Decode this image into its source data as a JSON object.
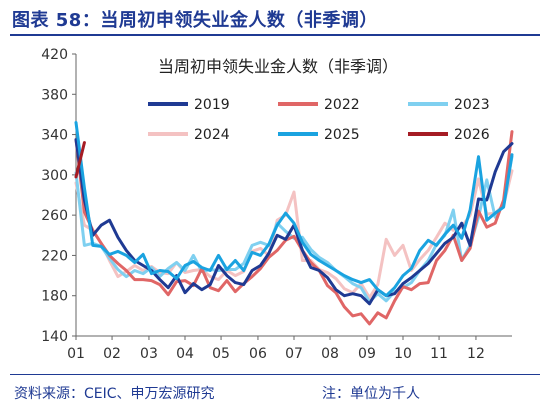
{
  "figure": {
    "title": "图表 58：当周初申领失业金人数（非季调）",
    "source": "资料来源：CEIC、申万宏源研究",
    "note": "注：单位为千人"
  },
  "chart_data": {
    "type": "line",
    "title": "当周初申领失业金人数（非季调）",
    "xlabel": "",
    "ylabel": "",
    "ylim": [
      140,
      420
    ],
    "yticks": [
      140,
      180,
      220,
      260,
      300,
      340,
      380,
      420
    ],
    "xlim": [
      1,
      53
    ],
    "x_tick_labels": [
      "01",
      "02",
      "03",
      "04",
      "05",
      "06",
      "07",
      "08",
      "09",
      "10",
      "11",
      "12"
    ],
    "x_tick_weeks": [
      1,
      5.3,
      9.7,
      14,
      18.3,
      22.7,
      27,
      31.3,
      35.7,
      40,
      44.3,
      48.7
    ],
    "grid": false,
    "legend": "top-right",
    "series": [
      {
        "name": "2019",
        "color": "#1f3a93",
        "width": 3,
        "points": [
          [
            1,
            335
          ],
          [
            2,
            275
          ],
          [
            3,
            240
          ],
          [
            4,
            250
          ],
          [
            5,
            255
          ],
          [
            6,
            238
          ],
          [
            7,
            225
          ],
          [
            8,
            215
          ],
          [
            9,
            210
          ],
          [
            10,
            205
          ],
          [
            11,
            196
          ],
          [
            12,
            188
          ],
          [
            13,
            200
          ],
          [
            14,
            183
          ],
          [
            15,
            192
          ],
          [
            16,
            186
          ],
          [
            17,
            191
          ],
          [
            18,
            210
          ],
          [
            19,
            200
          ],
          [
            20,
            193
          ],
          [
            21,
            191
          ],
          [
            22,
            205
          ],
          [
            23,
            210
          ],
          [
            24,
            222
          ],
          [
            25,
            240
          ],
          [
            26,
            236
          ],
          [
            27,
            250
          ],
          [
            28,
            225
          ],
          [
            29,
            208
          ],
          [
            30,
            205
          ],
          [
            31,
            198
          ],
          [
            32,
            186
          ],
          [
            33,
            180
          ],
          [
            34,
            182
          ],
          [
            35,
            180
          ],
          [
            36,
            172
          ],
          [
            37,
            186
          ],
          [
            38,
            180
          ],
          [
            39,
            182
          ],
          [
            40,
            192
          ],
          [
            41,
            198
          ],
          [
            42,
            205
          ],
          [
            43,
            212
          ],
          [
            44,
            222
          ],
          [
            45,
            232
          ],
          [
            46,
            238
          ],
          [
            47,
            252
          ],
          [
            48,
            230
          ],
          [
            49,
            276
          ],
          [
            50,
            275
          ],
          [
            51,
            303
          ],
          [
            52,
            323
          ],
          [
            53,
            331
          ]
        ]
      },
      {
        "name": "2022",
        "color": "#e06666",
        "width": 3,
        "points": [
          [
            1,
            335
          ],
          [
            2,
            263
          ],
          [
            3,
            245
          ],
          [
            4,
            232
          ],
          [
            5,
            220
          ],
          [
            6,
            212
          ],
          [
            7,
            205
          ],
          [
            8,
            196
          ],
          [
            9,
            196
          ],
          [
            10,
            195
          ],
          [
            11,
            191
          ],
          [
            12,
            181
          ],
          [
            13,
            194
          ],
          [
            14,
            195
          ],
          [
            15,
            190
          ],
          [
            16,
            207
          ],
          [
            17,
            188
          ],
          [
            18,
            185
          ],
          [
            19,
            195
          ],
          [
            20,
            184
          ],
          [
            21,
            192
          ],
          [
            22,
            199
          ],
          [
            23,
            207
          ],
          [
            24,
            218
          ],
          [
            25,
            225
          ],
          [
            26,
            235
          ],
          [
            27,
            239
          ],
          [
            28,
            225
          ],
          [
            29,
            213
          ],
          [
            30,
            205
          ],
          [
            31,
            190
          ],
          [
            32,
            183
          ],
          [
            33,
            169
          ],
          [
            34,
            160
          ],
          [
            35,
            162
          ],
          [
            36,
            152
          ],
          [
            37,
            163
          ],
          [
            38,
            158
          ],
          [
            39,
            175
          ],
          [
            40,
            189
          ],
          [
            41,
            186
          ],
          [
            42,
            192
          ],
          [
            43,
            193
          ],
          [
            44,
            215
          ],
          [
            45,
            225
          ],
          [
            46,
            240
          ],
          [
            47,
            215
          ],
          [
            48,
            227
          ],
          [
            49,
            264
          ],
          [
            50,
            248
          ],
          [
            51,
            252
          ],
          [
            52,
            275
          ],
          [
            53,
            343
          ]
        ]
      },
      {
        "name": "2023",
        "color": "#7fd0f0",
        "width": 3,
        "points": [
          [
            1,
            302
          ],
          [
            2,
            230
          ],
          [
            3,
            232
          ],
          [
            4,
            229
          ],
          [
            5,
            217
          ],
          [
            6,
            206
          ],
          [
            7,
            199
          ],
          [
            8,
            205
          ],
          [
            9,
            202
          ],
          [
            10,
            208
          ],
          [
            11,
            199
          ],
          [
            12,
            207
          ],
          [
            13,
            213
          ],
          [
            14,
            205
          ],
          [
            15,
            220
          ],
          [
            16,
            204
          ],
          [
            17,
            206
          ],
          [
            18,
            205
          ],
          [
            19,
            206
          ],
          [
            20,
            206
          ],
          [
            21,
            212
          ],
          [
            22,
            230
          ],
          [
            23,
            233
          ],
          [
            24,
            230
          ],
          [
            25,
            252
          ],
          [
            26,
            244
          ],
          [
            27,
            237
          ],
          [
            28,
            238
          ],
          [
            29,
            226
          ],
          [
            30,
            218
          ],
          [
            31,
            213
          ],
          [
            32,
            205
          ],
          [
            33,
            199
          ],
          [
            34,
            192
          ],
          [
            35,
            188
          ],
          [
            36,
            174
          ],
          [
            37,
            182
          ],
          [
            38,
            175
          ],
          [
            39,
            184
          ],
          [
            40,
            188
          ],
          [
            41,
            193
          ],
          [
            42,
            205
          ],
          [
            43,
            215
          ],
          [
            44,
            231
          ],
          [
            45,
            240
          ],
          [
            46,
            265
          ],
          [
            47,
            215
          ],
          [
            48,
            230
          ],
          [
            49,
            258
          ],
          [
            50,
            295
          ],
          [
            51,
            258
          ],
          [
            52,
            272
          ],
          [
            53,
            318
          ]
        ]
      },
      {
        "name": "2024",
        "color": "#f4c2c2",
        "width": 3,
        "points": [
          [
            1,
            292
          ],
          [
            2,
            250
          ],
          [
            3,
            245
          ],
          [
            4,
            232
          ],
          [
            5,
            215
          ],
          [
            6,
            199
          ],
          [
            7,
            204
          ],
          [
            8,
            210
          ],
          [
            9,
            205
          ],
          [
            10,
            209
          ],
          [
            11,
            203
          ],
          [
            12,
            202
          ],
          [
            13,
            213
          ],
          [
            14,
            203
          ],
          [
            15,
            205
          ],
          [
            16,
            206
          ],
          [
            17,
            199
          ],
          [
            18,
            196
          ],
          [
            19,
            205
          ],
          [
            20,
            200
          ],
          [
            21,
            204
          ],
          [
            22,
            224
          ],
          [
            23,
            227
          ],
          [
            24,
            220
          ],
          [
            25,
            255
          ],
          [
            26,
            260
          ],
          [
            27,
            283
          ],
          [
            28,
            215
          ],
          [
            29,
            215
          ],
          [
            30,
            206
          ],
          [
            31,
            203
          ],
          [
            32,
            197
          ],
          [
            33,
            187
          ],
          [
            34,
            183
          ],
          [
            35,
            192
          ],
          [
            36,
            178
          ],
          [
            37,
            191
          ],
          [
            38,
            236
          ],
          [
            39,
            220
          ],
          [
            40,
            230
          ],
          [
            41,
            205
          ],
          [
            42,
            216
          ],
          [
            43,
            225
          ],
          [
            44,
            238
          ],
          [
            45,
            252
          ],
          [
            46,
            245
          ],
          [
            47,
            248
          ],
          [
            48,
            260
          ],
          [
            49,
            296
          ],
          [
            50,
            261
          ],
          [
            51,
            262
          ],
          [
            52,
            270
          ],
          [
            53,
            304
          ]
        ]
      },
      {
        "name": "2025",
        "color": "#1aa3e0",
        "width": 3,
        "points": [
          [
            1,
            352
          ],
          [
            2,
            287
          ],
          [
            3,
            230
          ],
          [
            4,
            229
          ],
          [
            5,
            221
          ],
          [
            6,
            224
          ],
          [
            7,
            220
          ],
          [
            8,
            213
          ],
          [
            9,
            221
          ],
          [
            10,
            202
          ],
          [
            11,
            205
          ],
          [
            12,
            204
          ],
          [
            13,
            197
          ],
          [
            14,
            210
          ],
          [
            15,
            214
          ],
          [
            16,
            208
          ],
          [
            17,
            205
          ],
          [
            18,
            220
          ],
          [
            19,
            206
          ],
          [
            20,
            215
          ],
          [
            21,
            205
          ],
          [
            22,
            223
          ],
          [
            23,
            220
          ],
          [
            24,
            231
          ],
          [
            25,
            250
          ],
          [
            26,
            262
          ],
          [
            27,
            252
          ],
          [
            28,
            233
          ],
          [
            29,
            221
          ],
          [
            30,
            215
          ],
          [
            31,
            210
          ],
          [
            32,
            205
          ],
          [
            33,
            200
          ],
          [
            34,
            196
          ],
          [
            35,
            193
          ],
          [
            36,
            196
          ],
          [
            37,
            186
          ],
          [
            38,
            180
          ],
          [
            39,
            188
          ],
          [
            40,
            200
          ],
          [
            41,
            207
          ],
          [
            42,
            225
          ],
          [
            43,
            235
          ],
          [
            44,
            230
          ],
          [
            45,
            241
          ],
          [
            46,
            250
          ],
          [
            47,
            237
          ],
          [
            48,
            265
          ],
          [
            49,
            318
          ],
          [
            50,
            255
          ],
          [
            51,
            262
          ],
          [
            52,
            268
          ],
          [
            53,
            320
          ]
        ]
      },
      {
        "name": "2026",
        "color": "#a51c24",
        "width": 3,
        "points": [
          [
            1,
            298
          ],
          [
            2,
            332
          ]
        ]
      }
    ]
  }
}
